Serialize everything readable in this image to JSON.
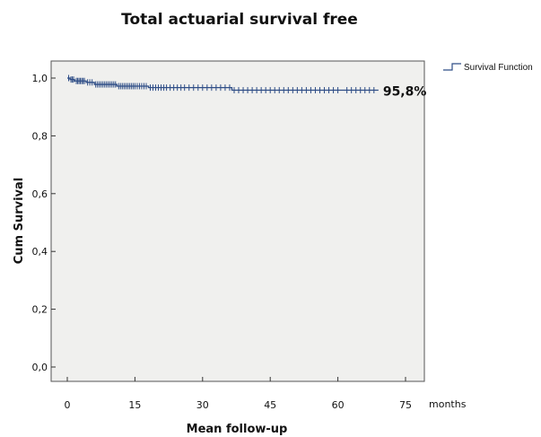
{
  "chart_data": {
    "type": "line",
    "title": "Total actuarial survival free",
    "xlabel": "Mean follow-up",
    "ylabel": "Cum Survival",
    "x_unit_label": "months",
    "xlim": [
      0,
      75
    ],
    "ylim": [
      0,
      1
    ],
    "x_ticks": [
      0,
      15,
      30,
      45,
      60,
      75
    ],
    "y_ticks": [
      0.0,
      0.2,
      0.4,
      0.6,
      0.8,
      1.0
    ],
    "y_tick_labels": [
      "0,0",
      "0,2",
      "0,4",
      "0,6",
      "0,8",
      "1,0"
    ],
    "grid": false,
    "legend_position": "top-right",
    "color": "#2e4d86",
    "series": [
      {
        "name": "Survival Function",
        "steps": [
          {
            "x": 0,
            "y": 1.0
          },
          {
            "x": 0.6,
            "y": 0.995
          },
          {
            "x": 1.6,
            "y": 0.99
          },
          {
            "x": 4.2,
            "y": 0.985
          },
          {
            "x": 6,
            "y": 0.978
          },
          {
            "x": 11,
            "y": 0.972
          },
          {
            "x": 18,
            "y": 0.967
          },
          {
            "x": 36.5,
            "y": 0.958
          },
          {
            "x": 69,
            "y": 0.958
          }
        ],
        "censored": [
          0.3,
          0.8,
          1.1,
          1.4,
          2.0,
          2.3,
          2.6,
          2.9,
          3.2,
          3.5,
          3.8,
          4.5,
          5.0,
          5.5,
          6.3,
          6.7,
          7.1,
          7.5,
          7.9,
          8.3,
          8.7,
          9.1,
          9.5,
          9.9,
          10.3,
          10.7,
          11.4,
          11.8,
          12.2,
          12.6,
          13.0,
          13.4,
          13.8,
          14.2,
          14.6,
          15.0,
          15.5,
          16.0,
          16.5,
          17.0,
          17.5,
          18.4,
          19.0,
          19.6,
          20.2,
          20.8,
          21.4,
          22.0,
          22.8,
          23.6,
          24.4,
          25.2,
          26.0,
          27.0,
          28.0,
          29.0,
          30.0,
          31.0,
          32.0,
          33.0,
          34.0,
          35.0,
          36.0,
          37.0,
          38.0,
          39.0,
          40.0,
          41.0,
          42.0,
          43.0,
          44.0,
          45.0,
          46.0,
          47.0,
          48.0,
          49.0,
          50.0,
          51.0,
          52.0,
          53.0,
          54.0,
          55.0,
          56.0,
          57.0,
          58.0,
          59.0,
          60.0,
          62.0,
          63.0,
          64.0,
          65.0,
          66.0,
          67.0,
          68.0
        ]
      }
    ],
    "annotations": [
      {
        "text": "95,8%",
        "x": 69,
        "y": 0.958
      }
    ]
  }
}
